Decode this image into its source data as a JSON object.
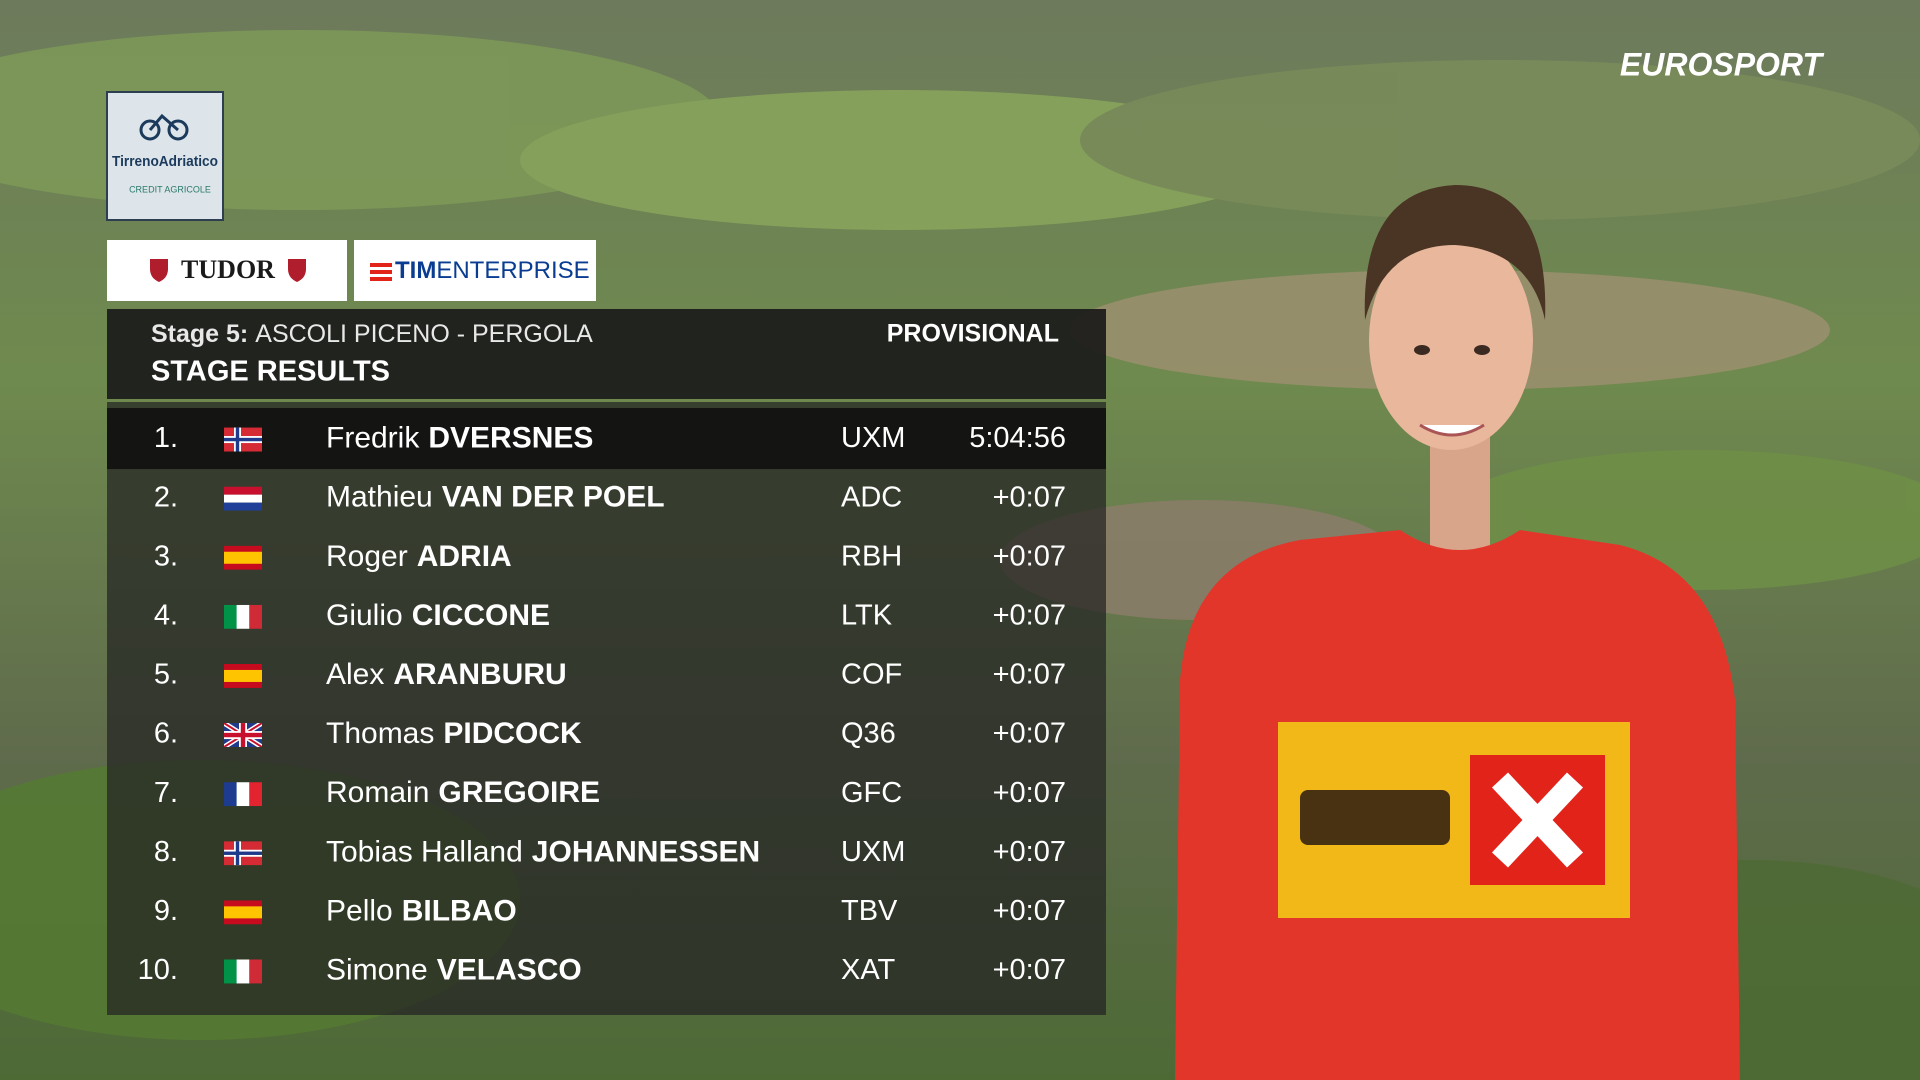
{
  "broadcaster": "EUROSPORT",
  "event_logo": {
    "name": "TirrenoAdriatico",
    "sponsor": "CREDIT AGRICOLE"
  },
  "sponsors": {
    "tudor": "TUDOR",
    "tim_bold": "TIM",
    "tim_regular": "ENTERPRISE"
  },
  "header": {
    "stage_label": "Stage 5:",
    "route": "ASCOLI PICENO - PERGOLA",
    "status": "PROVISIONAL",
    "title": "STAGE RESULTS"
  },
  "table": {
    "rows": [
      {
        "rank": "1.",
        "first_name": "Fredrik",
        "last_name": "DVERSNES",
        "team": "UXM",
        "time": "5:04:56"
      },
      {
        "rank": "2.",
        "first_name": "Mathieu",
        "last_name": "VAN DER POEL",
        "team": "ADC",
        "time": "+0:07"
      },
      {
        "rank": "3.",
        "first_name": "Roger",
        "last_name": "ADRIA",
        "team": "RBH",
        "time": "+0:07"
      },
      {
        "rank": "4.",
        "first_name": "Giulio",
        "last_name": "CICCONE",
        "team": "LTK",
        "time": "+0:07"
      },
      {
        "rank": "5.",
        "first_name": "Alex",
        "last_name": "ARANBURU",
        "team": "COF",
        "time": "+0:07"
      },
      {
        "rank": "6.",
        "first_name": "Thomas",
        "last_name": "PIDCOCK",
        "team": "Q36",
        "time": "+0:07"
      },
      {
        "rank": "7.",
        "first_name": "Romain",
        "last_name": "GREGOIRE",
        "team": "GFC",
        "time": "+0:07"
      },
      {
        "rank": "8.",
        "first_name": "Tobias Halland",
        "last_name": "JOHANNESSEN",
        "team": "UXM",
        "time": "+0:07"
      },
      {
        "rank": "9.",
        "first_name": "Pello",
        "last_name": "BILBAO",
        "team": "TBV",
        "time": "+0:07"
      },
      {
        "rank": "10.",
        "first_name": "Simone",
        "last_name": "VELASCO",
        "team": "XAT",
        "time": "+0:07"
      }
    ]
  }
}
